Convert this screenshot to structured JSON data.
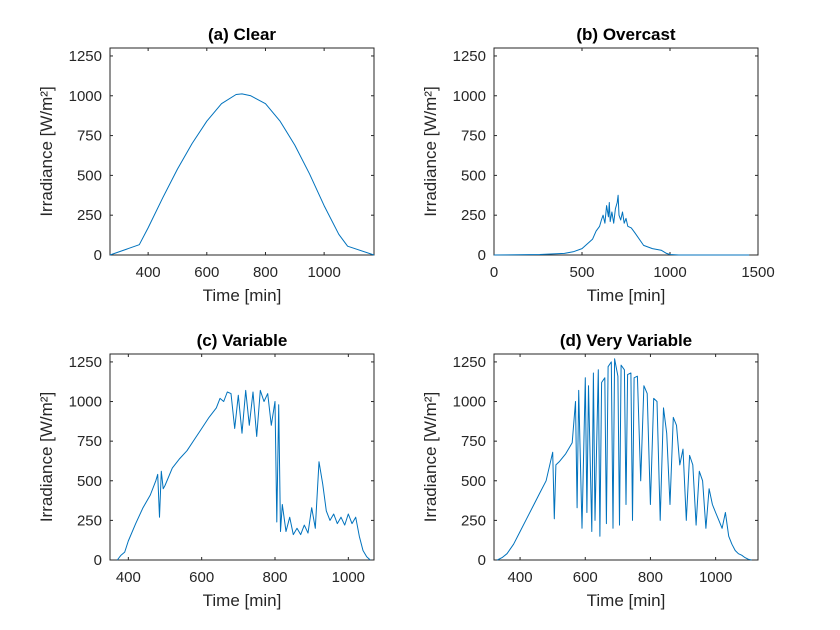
{
  "chart_data": [
    {
      "type": "line",
      "title": "(a) Clear",
      "xlabel": "Time [min]",
      "ylabel": "Irradiance [W/m²]",
      "xlim": [
        270,
        1170
      ],
      "ylim": [
        0,
        1300
      ],
      "xticks": [
        400,
        600,
        800,
        1000
      ],
      "yticks": [
        0,
        250,
        500,
        750,
        1000,
        1250
      ],
      "color": "#0072BD",
      "x": [
        270,
        370,
        400,
        450,
        500,
        550,
        600,
        650,
        700,
        720,
        750,
        800,
        850,
        900,
        950,
        1000,
        1050,
        1080,
        1170
      ],
      "y": [
        0,
        65,
        170,
        360,
        540,
        700,
        840,
        950,
        1008,
        1012,
        1000,
        950,
        840,
        690,
        510,
        310,
        130,
        55,
        0
      ]
    },
    {
      "type": "line",
      "title": "(b) Overcast",
      "xlabel": "Time [min]",
      "ylabel": "Irradiance [W/m²]",
      "xlim": [
        0,
        1500
      ],
      "ylim": [
        0,
        1300
      ],
      "xticks": [
        0,
        500,
        1000,
        1500
      ],
      "yticks": [
        0,
        250,
        500,
        750,
        1000,
        1250
      ],
      "color": "#0072BD",
      "x": [
        0,
        260,
        400,
        450,
        500,
        530,
        560,
        580,
        600,
        610,
        620,
        630,
        640,
        650,
        655,
        660,
        670,
        680,
        690,
        700,
        705,
        710,
        720,
        730,
        740,
        750,
        760,
        780,
        800,
        850,
        900,
        950,
        980,
        1000,
        1050,
        1450
      ],
      "y": [
        0,
        3,
        10,
        20,
        40,
        70,
        100,
        150,
        180,
        220,
        250,
        200,
        310,
        240,
        330,
        210,
        270,
        200,
        290,
        330,
        375,
        250,
        220,
        270,
        200,
        230,
        180,
        170,
        140,
        60,
        40,
        30,
        10,
        3,
        0,
        0
      ]
    },
    {
      "type": "line",
      "title": "(c) Variable",
      "xlabel": "Time [min]",
      "ylabel": "Irradiance [W/m²]",
      "xlim": [
        350,
        1070
      ],
      "ylim": [
        0,
        1300
      ],
      "xticks": [
        400,
        600,
        800,
        1000
      ],
      "yticks": [
        0,
        250,
        500,
        750,
        1000,
        1250
      ],
      "color": "#0072BD",
      "x": [
        370,
        380,
        390,
        400,
        420,
        440,
        460,
        475,
        480,
        485,
        490,
        495,
        500,
        520,
        540,
        560,
        580,
        600,
        620,
        640,
        650,
        660,
        670,
        680,
        690,
        700,
        710,
        720,
        730,
        740,
        750,
        760,
        770,
        780,
        790,
        800,
        805,
        810,
        815,
        820,
        830,
        840,
        850,
        860,
        870,
        880,
        890,
        900,
        910,
        920,
        930,
        940,
        950,
        960,
        970,
        980,
        990,
        1000,
        1010,
        1020,
        1030,
        1040,
        1050,
        1060
      ],
      "y": [
        0,
        30,
        50,
        120,
        230,
        330,
        410,
        500,
        540,
        270,
        560,
        450,
        470,
        580,
        640,
        690,
        760,
        830,
        900,
        960,
        1020,
        1000,
        1060,
        1050,
        830,
        1040,
        800,
        1070,
        850,
        1060,
        780,
        1070,
        1000,
        1050,
        850,
        1000,
        240,
        980,
        180,
        350,
        180,
        270,
        160,
        200,
        160,
        220,
        170,
        330,
        200,
        620,
        480,
        310,
        250,
        290,
        230,
        270,
        220,
        290,
        230,
        270,
        150,
        60,
        20,
        0
      ]
    },
    {
      "type": "line",
      "title": "(d) Very Variable",
      "xlabel": "Time [min]",
      "ylabel": "Irradiance [W/m²]",
      "xlim": [
        320,
        1130
      ],
      "ylim": [
        0,
        1300
      ],
      "xticks": [
        400,
        600,
        800,
        1000
      ],
      "yticks": [
        0,
        250,
        500,
        750,
        1000,
        1250
      ],
      "color": "#0072BD",
      "x": [
        330,
        345,
        360,
        380,
        400,
        420,
        440,
        460,
        480,
        500,
        505,
        510,
        520,
        540,
        560,
        570,
        575,
        580,
        590,
        600,
        605,
        610,
        620,
        625,
        630,
        640,
        645,
        650,
        660,
        665,
        670,
        680,
        685,
        690,
        700,
        705,
        710,
        720,
        725,
        730,
        740,
        745,
        750,
        760,
        770,
        780,
        790,
        800,
        810,
        820,
        830,
        840,
        850,
        860,
        870,
        880,
        890,
        900,
        910,
        920,
        930,
        940,
        950,
        960,
        970,
        980,
        990,
        1000,
        1010,
        1020,
        1030,
        1040,
        1050,
        1060,
        1070,
        1080,
        1090,
        1100,
        1110
      ],
      "y": [
        0,
        15,
        40,
        100,
        180,
        260,
        340,
        420,
        500,
        680,
        260,
        600,
        620,
        670,
        740,
        1000,
        330,
        1070,
        200,
        1150,
        300,
        1100,
        180,
        1180,
        250,
        1200,
        150,
        1120,
        1150,
        230,
        1220,
        1250,
        200,
        1270,
        1160,
        220,
        1230,
        1200,
        350,
        1170,
        1180,
        250,
        1150,
        1160,
        500,
        1100,
        1050,
        350,
        1020,
        1000,
        250,
        960,
        800,
        350,
        900,
        850,
        600,
        700,
        250,
        660,
        600,
        220,
        560,
        500,
        200,
        450,
        350,
        300,
        250,
        200,
        300,
        150,
        100,
        60,
        40,
        30,
        15,
        5,
        0
      ]
    }
  ]
}
